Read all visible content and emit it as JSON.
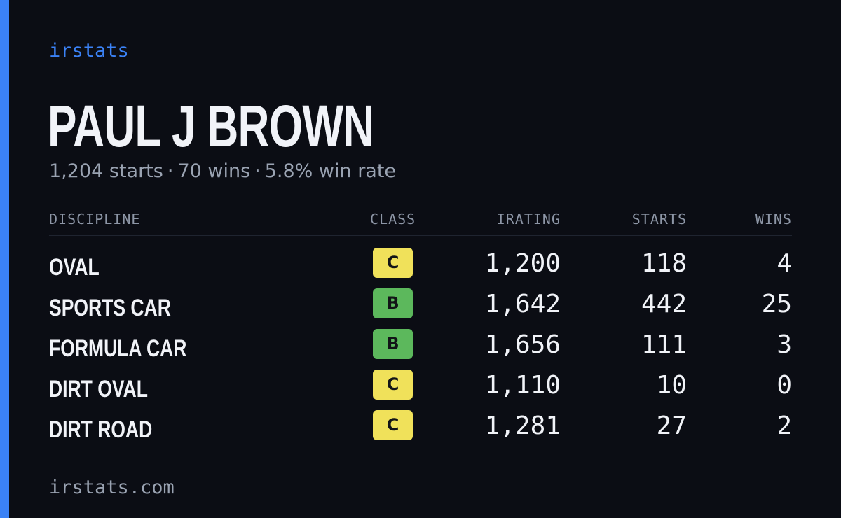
{
  "brand": "irstats",
  "driver": {
    "name": "PAUL J BROWN",
    "starts_text": "1,204 starts",
    "wins_text": "70 wins",
    "win_rate_text": "5.8% win rate",
    "separator": "·"
  },
  "table": {
    "headers": {
      "discipline": "DISCIPLINE",
      "class": "CLASS",
      "irating": "IRATING",
      "starts": "STARTS",
      "wins": "WINS"
    },
    "rows": [
      {
        "discipline": "OVAL",
        "class": "C",
        "class_color": "#f0e15a",
        "irating": "1,200",
        "starts": "118",
        "wins": "4"
      },
      {
        "discipline": "SPORTS CAR",
        "class": "B",
        "class_color": "#5cb85c",
        "irating": "1,642",
        "starts": "442",
        "wins": "25"
      },
      {
        "discipline": "FORMULA CAR",
        "class": "B",
        "class_color": "#5cb85c",
        "irating": "1,656",
        "starts": "111",
        "wins": "3"
      },
      {
        "discipline": "DIRT OVAL",
        "class": "C",
        "class_color": "#f0e15a",
        "irating": "1,110",
        "starts": "10",
        "wins": "0"
      },
      {
        "discipline": "DIRT ROAD",
        "class": "C",
        "class_color": "#f0e15a",
        "irating": "1,281",
        "starts": "27",
        "wins": "2"
      }
    ]
  },
  "footer": "irstats.com",
  "colors": {
    "accent": "#3b82f6",
    "background": "#0b0d14",
    "class_b": "#5cb85c",
    "class_c": "#f0e15a"
  }
}
